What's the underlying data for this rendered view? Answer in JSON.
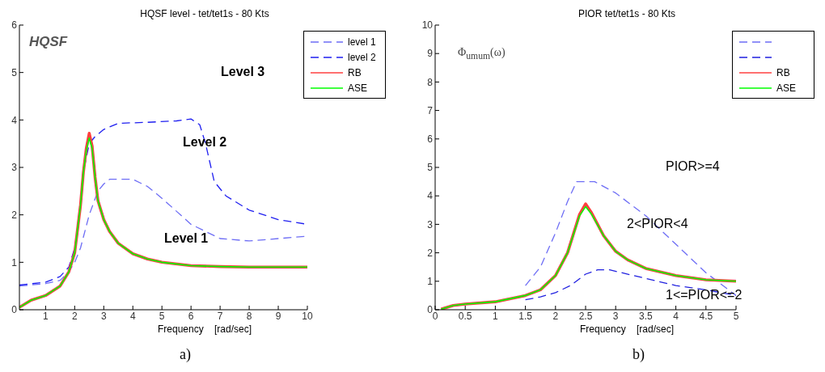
{
  "chart_data": [
    {
      "type": "line",
      "title": "HQSF level - tet/tet1s - 80 Kts",
      "xlabel": "Frequency    [rad/sec]",
      "xlim": [
        0.1,
        10
      ],
      "xticks": [
        1,
        2,
        3,
        4,
        5,
        6,
        7,
        8,
        9,
        10
      ],
      "ylim": [
        0,
        6
      ],
      "yticks": [
        0,
        1,
        2,
        3,
        4,
        5,
        6
      ],
      "grid": false,
      "legend": "top right",
      "marker": "none",
      "annotations": [
        "HQSF",
        "Level 3",
        "Level 2",
        "Level 1",
        "a)"
      ],
      "series": [
        {
          "name": "level 1",
          "color": "#6e6ef5",
          "line_style": "dashed",
          "x": [
            0.1,
            1,
            1.5,
            1.8,
            2,
            2.2,
            2.5,
            2.8,
            3,
            3.2,
            4,
            4.5,
            5,
            6,
            7,
            8,
            9,
            10
          ],
          "values": [
            0.5,
            0.55,
            0.62,
            0.8,
            1.0,
            1.3,
            2.0,
            2.5,
            2.65,
            2.75,
            2.75,
            2.6,
            2.35,
            1.8,
            1.5,
            1.45,
            1.5,
            1.55
          ]
        },
        {
          "name": "level 2",
          "color": "#1f1ff0",
          "line_style": "dashed",
          "x": [
            0.1,
            1,
            1.5,
            1.8,
            2,
            2.2,
            2.3,
            2.5,
            2.7,
            3,
            3.5,
            4.5,
            5.5,
            6,
            6.3,
            6.5,
            6.8,
            7.2,
            8,
            9,
            10
          ],
          "values": [
            0.52,
            0.58,
            0.7,
            0.9,
            1.3,
            2.2,
            2.9,
            3.5,
            3.65,
            3.8,
            3.93,
            3.95,
            3.98,
            4.02,
            3.9,
            3.5,
            2.7,
            2.4,
            2.1,
            1.9,
            1.8
          ]
        },
        {
          "name": "RB",
          "color": "#ff4040",
          "line_style": "solid",
          "x": [
            0.1,
            0.5,
            1,
            1.5,
            1.8,
            2,
            2.2,
            2.3,
            2.4,
            2.5,
            2.6,
            2.7,
            2.8,
            3,
            3.2,
            3.5,
            4,
            4.5,
            5,
            6,
            7,
            8,
            10
          ],
          "values": [
            0.05,
            0.2,
            0.3,
            0.5,
            0.8,
            1.2,
            2.2,
            2.9,
            3.4,
            3.72,
            3.45,
            2.8,
            2.3,
            1.9,
            1.65,
            1.4,
            1.18,
            1.07,
            1.0,
            0.93,
            0.91,
            0.9,
            0.9
          ]
        },
        {
          "name": "ASE",
          "color": "#00ff00",
          "line_style": "solid",
          "x": [
            0.1,
            0.5,
            1,
            1.5,
            1.8,
            2,
            2.2,
            2.3,
            2.4,
            2.5,
            2.6,
            2.7,
            2.8,
            3,
            3.2,
            3.5,
            4,
            4.5,
            5,
            6,
            7,
            8,
            10
          ],
          "values": [
            0.05,
            0.2,
            0.3,
            0.5,
            0.8,
            1.2,
            2.2,
            2.9,
            3.35,
            3.62,
            3.4,
            2.8,
            2.3,
            1.9,
            1.65,
            1.4,
            1.18,
            1.07,
            1.0,
            0.93,
            0.91,
            0.9,
            0.9
          ]
        }
      ]
    },
    {
      "type": "line",
      "title": "PIOR tet/tet1s - 80 Kts",
      "xlabel": "Frequency    [rad/sec]",
      "xlim": [
        0,
        5
      ],
      "xticks": [
        0,
        0.5,
        1,
        1.5,
        2,
        2.5,
        3,
        3.5,
        4,
        4.5,
        5
      ],
      "ylim": [
        0,
        10
      ],
      "yticks": [
        0,
        1,
        2,
        3,
        4,
        5,
        6,
        7,
        8,
        9,
        10
      ],
      "grid": false,
      "legend": "top right",
      "marker": "none",
      "annotations": [
        "Φ$_{umum}$(ω)",
        "PIOR>=4",
        "2<PIOR<4",
        "1<=PIOR<=2",
        "b)"
      ],
      "series": [
        {
          "color": "#6e6ef5",
          "line_style": "dashed",
          "x": [
            1.5,
            1.75,
            2,
            2.2,
            2.35,
            2.65,
            3,
            3.5,
            4,
            4.5,
            5
          ],
          "values": [
            0.85,
            1.5,
            2.7,
            3.8,
            4.5,
            4.5,
            4.1,
            3.3,
            2.3,
            1.3,
            0.5
          ]
        },
        {
          "color": "#2020e0",
          "line_style": "dashed",
          "x": [
            1.5,
            1.75,
            2,
            2.25,
            2.5,
            2.7,
            2.9,
            3.5,
            4,
            4.5,
            5
          ],
          "values": [
            0.35,
            0.45,
            0.6,
            0.85,
            1.25,
            1.4,
            1.4,
            1.1,
            0.85,
            0.7,
            0.5
          ]
        },
        {
          "name": "RB",
          "color": "#ff4040",
          "line_style": "solid",
          "x": [
            0.1,
            0.3,
            0.5,
            1,
            1.5,
            1.75,
            2,
            2.2,
            2.4,
            2.5,
            2.6,
            2.8,
            3,
            3.2,
            3.5,
            4,
            4.5,
            5
          ],
          "values": [
            0.02,
            0.15,
            0.2,
            0.28,
            0.5,
            0.7,
            1.2,
            2.0,
            3.35,
            3.72,
            3.4,
            2.6,
            2.05,
            1.75,
            1.45,
            1.2,
            1.05,
            1.0
          ]
        },
        {
          "name": "ASE",
          "color": "#00ff00",
          "line_style": "solid",
          "x": [
            0.1,
            0.3,
            0.5,
            1,
            1.5,
            1.75,
            2,
            2.2,
            2.4,
            2.5,
            2.6,
            2.8,
            3,
            3.2,
            3.5,
            4,
            4.5,
            5
          ],
          "values": [
            0.02,
            0.15,
            0.2,
            0.28,
            0.5,
            0.7,
            1.2,
            2.0,
            3.3,
            3.62,
            3.35,
            2.6,
            2.05,
            1.75,
            1.45,
            1.2,
            1.05,
            1.0
          ]
        }
      ]
    }
  ]
}
